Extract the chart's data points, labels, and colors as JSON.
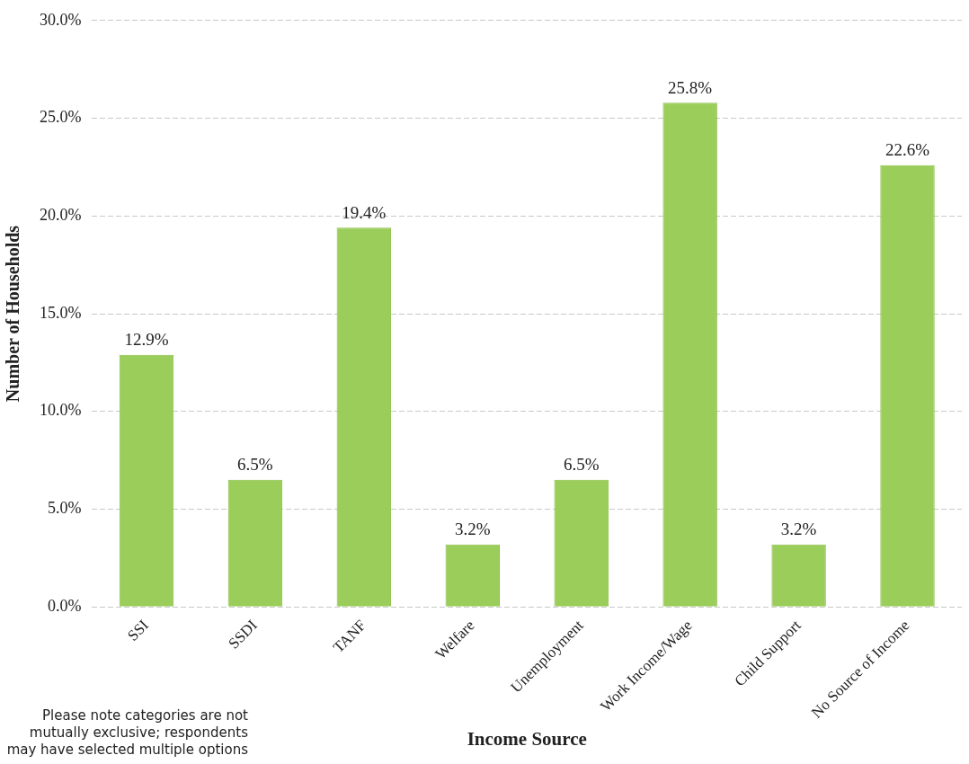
{
  "chart_data": {
    "type": "bar",
    "xlabel": "Income Source",
    "ylabel": "Number of Households",
    "categories": [
      "SSI",
      "SSDI",
      "TANF",
      "Welfare",
      "Unemployment",
      "Work Income/Wage",
      "Child Support",
      "No Source of Income"
    ],
    "values": [
      12.9,
      6.5,
      19.4,
      3.2,
      6.5,
      25.8,
      3.2,
      22.6
    ],
    "value_labels": [
      "12.9%",
      "6.5%",
      "19.4%",
      "3.2%",
      "6.5%",
      "25.8%",
      "3.2%",
      "22.6%"
    ],
    "color": "#9acd5a",
    "ylim": [
      0,
      30
    ],
    "yticks": [
      {
        "value": 0,
        "label": "0.0%"
      },
      {
        "value": 5,
        "label": "5.0%"
      },
      {
        "value": 10,
        "label": "10.0%"
      },
      {
        "value": 15,
        "label": "15.0%"
      },
      {
        "value": 20,
        "label": "20.0%"
      },
      {
        "value": 25,
        "label": "25.0%"
      },
      {
        "value": 30,
        "label": "30.0%"
      }
    ],
    "grid": "y",
    "legend": false,
    "annotations": [
      "Please note categories are not mutually exclusive;  respondents may have selected multiple options"
    ]
  }
}
